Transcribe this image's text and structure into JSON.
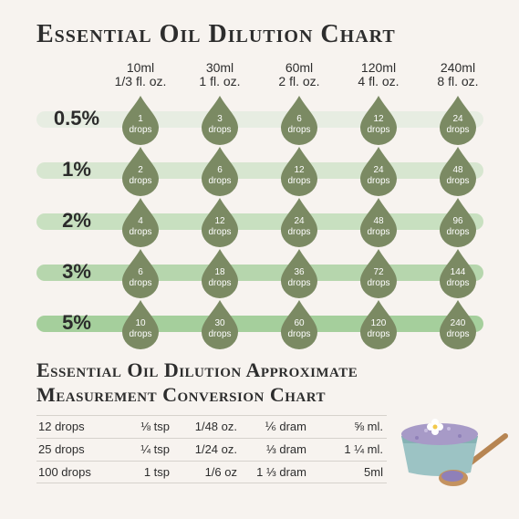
{
  "title": "Essential Oil Dilution Chart",
  "columns": [
    {
      "ml": "10ml",
      "oz": "1/3 fl. oz."
    },
    {
      "ml": "30ml",
      "oz": "1 fl. oz."
    },
    {
      "ml": "60ml",
      "oz": "2 fl. oz."
    },
    {
      "ml": "120ml",
      "oz": "4 fl. oz."
    },
    {
      "ml": "240ml",
      "oz": "8 fl. oz."
    }
  ],
  "unit_label": "drops",
  "rows": [
    {
      "pct": "0.5%",
      "drops": [
        "1",
        "3",
        "6",
        "12",
        "24"
      ],
      "bar_color": "#e7ede2"
    },
    {
      "pct": "1%",
      "drops": [
        "2",
        "6",
        "12",
        "24",
        "48"
      ],
      "bar_color": "#d7e6d0"
    },
    {
      "pct": "2%",
      "drops": [
        "4",
        "12",
        "24",
        "48",
        "96"
      ],
      "bar_color": "#c8e0c0"
    },
    {
      "pct": "3%",
      "drops": [
        "6",
        "18",
        "36",
        "72",
        "144"
      ],
      "bar_color": "#b6d6ad"
    },
    {
      "pct": "5%",
      "drops": [
        "10",
        "30",
        "60",
        "120",
        "240"
      ],
      "bar_color": "#a5cf9c"
    }
  ],
  "drop_color": "#7b8a63",
  "title2_line1": "Essential Oil Dilution Approximate",
  "title2_line2": "Measurement Conversion Chart",
  "conversion_rows": [
    [
      "12 drops",
      "⅛ tsp",
      "1/48 oz.",
      "⅙ dram",
      "⅝ ml."
    ],
    [
      "25 drops",
      "¼ tsp",
      "1/24 oz.",
      "⅓ dram",
      "1 ¼ ml."
    ],
    [
      "100 drops",
      "1 tsp",
      "1/6 oz",
      "1 ⅓ dram",
      "5ml"
    ]
  ]
}
